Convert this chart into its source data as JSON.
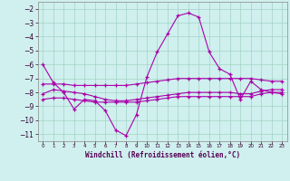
{
  "xlabel": "Windchill (Refroidissement éolien,°C)",
  "bg_color": "#cff0ee",
  "grid_color": "#99ccbb",
  "line_color": "#aa00aa",
  "hours": [
    0,
    1,
    2,
    3,
    4,
    5,
    6,
    7,
    8,
    9,
    10,
    11,
    12,
    13,
    14,
    15,
    16,
    17,
    18,
    19,
    20,
    21,
    22,
    23
  ],
  "windchill": [
    -6.0,
    -7.3,
    -8.0,
    -9.2,
    -8.5,
    -8.6,
    -9.3,
    -10.7,
    -11.1,
    -9.6,
    -6.9,
    -5.1,
    -3.8,
    -2.5,
    -2.3,
    -2.6,
    -5.1,
    -6.3,
    -6.7,
    -8.5,
    -7.2,
    -7.8,
    -8.0,
    -8.1
  ],
  "line2": [
    -7.4,
    -7.4,
    -7.4,
    -7.5,
    -7.5,
    -7.5,
    -7.5,
    -7.5,
    -7.5,
    -7.4,
    -7.3,
    -7.2,
    -7.1,
    -7.0,
    -7.0,
    -7.0,
    -7.0,
    -7.0,
    -7.0,
    -7.0,
    -7.0,
    -7.1,
    -7.2,
    -7.2
  ],
  "line3": [
    -8.1,
    -7.8,
    -7.9,
    -8.0,
    -8.1,
    -8.3,
    -8.5,
    -8.6,
    -8.6,
    -8.5,
    -8.4,
    -8.3,
    -8.2,
    -8.1,
    -8.0,
    -8.0,
    -8.0,
    -8.0,
    -8.0,
    -8.1,
    -8.1,
    -7.9,
    -7.8,
    -7.8
  ],
  "line4": [
    -8.5,
    -8.4,
    -8.4,
    -8.5,
    -8.6,
    -8.7,
    -8.7,
    -8.7,
    -8.7,
    -8.7,
    -8.6,
    -8.5,
    -8.4,
    -8.3,
    -8.3,
    -8.3,
    -8.3,
    -8.3,
    -8.3,
    -8.3,
    -8.3,
    -8.1,
    -8.0,
    -8.0
  ],
  "ylim": [
    -11.5,
    -1.5
  ],
  "yticks": [
    -2,
    -3,
    -4,
    -5,
    -6,
    -7,
    -8,
    -9,
    -10,
    -11
  ],
  "xlim": [
    -0.5,
    23.5
  ]
}
